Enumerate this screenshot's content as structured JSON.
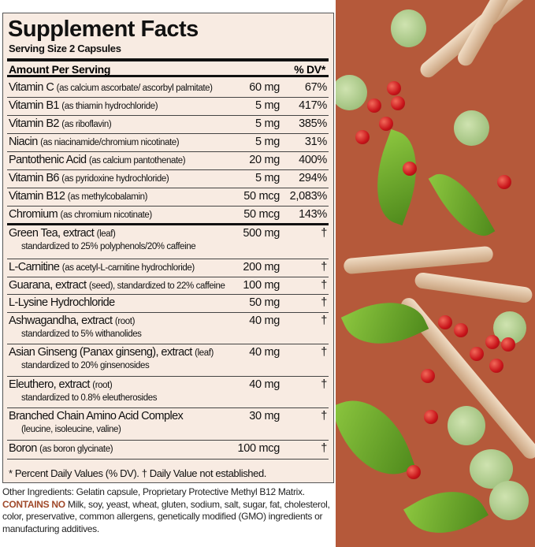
{
  "title": "Supplement Facts",
  "serving": "Serving Size 2 Capsules",
  "header": {
    "amount": "Amount Per Serving",
    "dv": "% DV*"
  },
  "rows": [
    {
      "name": "Vitamin C",
      "detail": "(as calcium ascorbate/ ascorbyl palmitate)",
      "amount": "60 mg",
      "dv": "67%"
    },
    {
      "name": "Vitamin B1",
      "detail": "(as thiamin hydrochloride)",
      "amount": "5 mg",
      "dv": "417%"
    },
    {
      "name": "Vitamin B2",
      "detail": "(as riboflavin)",
      "amount": "5 mg",
      "dv": "385%"
    },
    {
      "name": "Niacin",
      "detail": "(as niacinamide/chromium nicotinate)",
      "amount": "5 mg",
      "dv": "31%"
    },
    {
      "name": "Pantothenic Acid",
      "detail": "(as calcium pantothenate)",
      "amount": "20 mg",
      "dv": "400%"
    },
    {
      "name": "Vitamin B6",
      "detail": "(as pyridoxine hydrochloride)",
      "amount": "5 mg",
      "dv": "294%"
    },
    {
      "name": "Vitamin B12",
      "detail": "(as methylcobalamin)",
      "amount": "50 mcg",
      "dv": "2,083%"
    },
    {
      "name": "Chromium",
      "detail": "(as chromium nicotinate)",
      "amount": "50 mcg",
      "dv": "143%"
    },
    {
      "name": "Green Tea, extract",
      "detail": "(leaf)",
      "sub": "standardized to 25% polyphenols/20% caffeine",
      "amount": "500 mg",
      "dv": "†"
    },
    {
      "name": "L-Carnitine",
      "detail": "(as acetyl-L-carnitine hydrochloride)",
      "amount": "200 mg",
      "dv": "†"
    },
    {
      "name": "Guarana, extract",
      "detail": "(seed), standardized to 22% caffeine",
      "amount": "100 mg",
      "dv": "†"
    },
    {
      "name": "L-Lysine Hydrochloride",
      "detail": "",
      "amount": "50 mg",
      "dv": "†"
    },
    {
      "name": "Ashwagandha, extract",
      "detail": "(root)",
      "sub": "standardized to 5% withanolides",
      "amount": "40 mg",
      "dv": "†"
    },
    {
      "name": "Asian Ginseng (Panax ginseng), extract",
      "detail": "(leaf)",
      "sub": "standardized to 20% ginsenosides",
      "amount": "40 mg",
      "dv": "†"
    },
    {
      "name": "Eleuthero, extract",
      "detail": "(root)",
      "sub": "standardized to 0.8% eleutherosides",
      "amount": "40 mg",
      "dv": "†"
    },
    {
      "name": "Branched Chain Amino Acid Complex",
      "detail": "",
      "sub": "(leucine, isoleucine, valine)",
      "amount": "30 mg",
      "dv": "†"
    },
    {
      "name": "Boron",
      "detail": "(as boron glycinate)",
      "amount": "100 mcg",
      "dv": "†"
    }
  ],
  "footnote": "* Percent Daily Values (% DV). † Daily Value not established.",
  "other_ingredients": "Other Ingredients: Gelatin capsule, Proprietary Protective Methyl B12 Matrix.",
  "contains_no_label": "CONTAINS NO",
  "contains_no_text": " Milk, soy, yeast, wheat, gluten, sodium, salt, sugar, fat, cholesterol, color, preservative, common allergens, genetically modified (GMO) ingredients or manufacturing additives.",
  "colors": {
    "panel_bg": "#f8ebe2",
    "art_bg": "#b5593a",
    "contains_no": "#a0492a"
  }
}
